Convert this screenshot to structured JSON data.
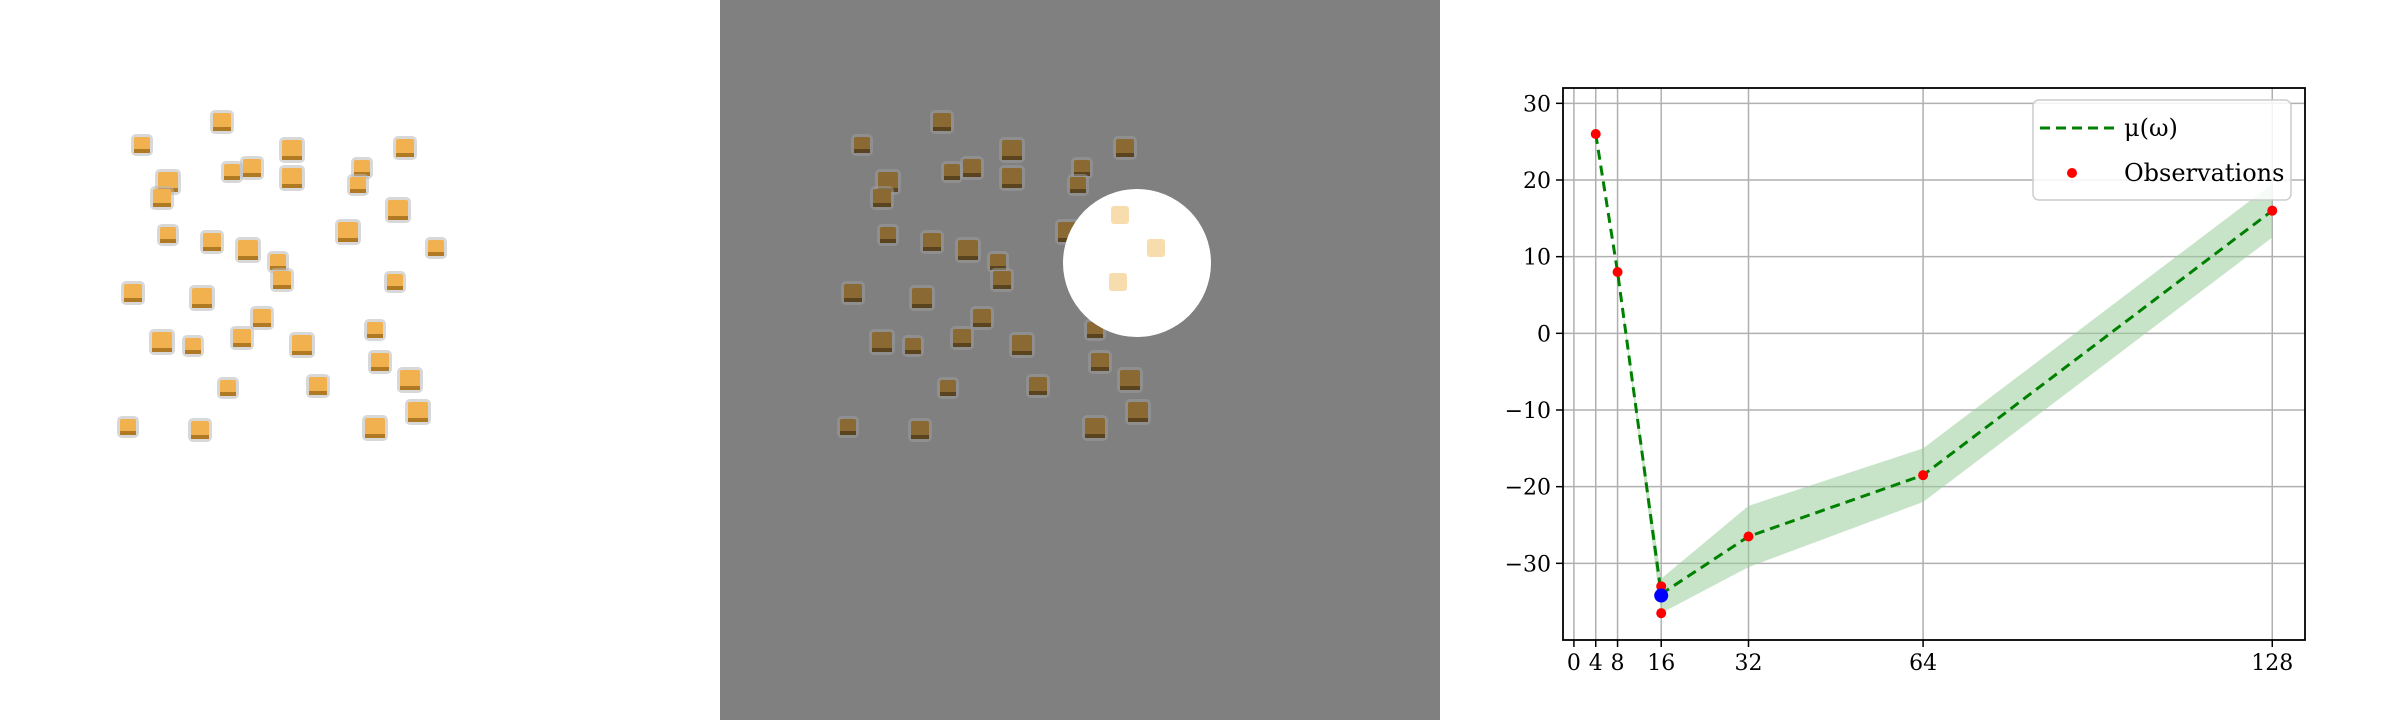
{
  "panels": [
    {
      "name": "scene-original",
      "background": "#ffffff",
      "object_color": "#f2b14f"
    },
    {
      "name": "scene-masked",
      "background": "#808080",
      "object_color": "#8a6a32",
      "highlight": "white-circle"
    },
    {
      "name": "surrogate-plot"
    }
  ],
  "chart_data": {
    "type": "line",
    "title": "",
    "xlabel": "",
    "ylabel": "",
    "x_ticks": [
      "0",
      "4",
      "8",
      "16",
      "32",
      "64",
      "128"
    ],
    "x_tick_values": [
      0,
      4,
      8,
      16,
      32,
      64,
      128
    ],
    "y_ticks": [
      "30",
      "20",
      "10",
      "0",
      "−10",
      "−20",
      "−30"
    ],
    "y_tick_values": [
      30,
      20,
      10,
      0,
      -10,
      -20,
      -30
    ],
    "xlim": [
      -2,
      134
    ],
    "ylim": [
      -40,
      32
    ],
    "grid": true,
    "legend_position": "top-right",
    "series": [
      {
        "name": "μ(ω)",
        "style": "dashed",
        "color": "#008000",
        "x": [
          4,
          8,
          16,
          32,
          64,
          128
        ],
        "y": [
          26,
          8,
          -34,
          -26.5,
          -18.5,
          16
        ],
        "band_upper": [
          26,
          8,
          -32,
          -22.5,
          -15,
          19.5
        ],
        "band_lower": [
          26,
          8,
          -36.5,
          -30.5,
          -22,
          12.5
        ],
        "band_color": "#9acd9a"
      },
      {
        "name": "Observations",
        "style": "points",
        "color": "#ff0000",
        "x": [
          4,
          8,
          16,
          16,
          16,
          32,
          64,
          128
        ],
        "y": [
          26,
          8,
          -33,
          -36.5,
          -34,
          -26.5,
          -18.5,
          16
        ]
      },
      {
        "name": "",
        "style": "point",
        "color": "#0000ff",
        "x": [
          16
        ],
        "y": [
          -34.2
        ]
      }
    ]
  }
}
